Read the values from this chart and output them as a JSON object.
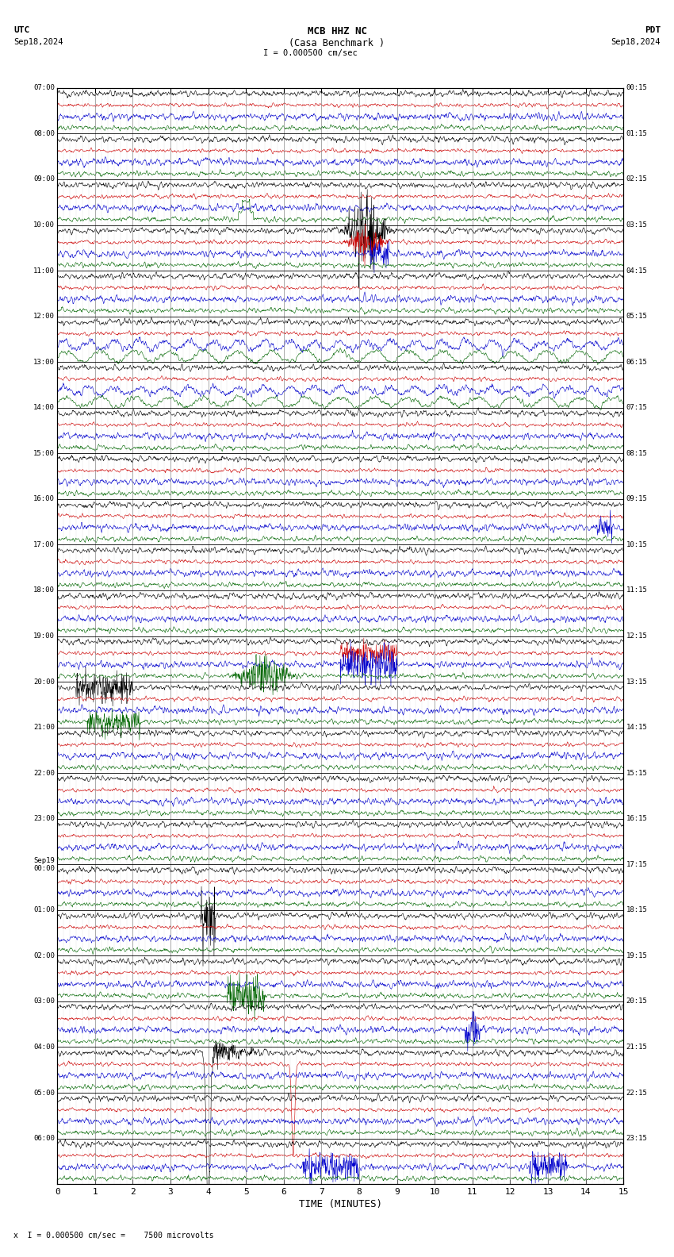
{
  "title_line1": "MCB HHZ NC",
  "title_line2": "(Casa Benchmark )",
  "title_scale": "I = 0.000500 cm/sec",
  "utc_label": "UTC",
  "pdt_label": "PDT",
  "utc_date": "Sep18,2024",
  "pdt_date": "Sep18,2024",
  "bottom_label": "x  I = 0.000500 cm/sec =    7500 microvolts",
  "xlabel": "TIME (MINUTES)",
  "bg_color": "#ffffff",
  "trace_colors": [
    "#000000",
    "#cc0000",
    "#0000cc",
    "#006600"
  ],
  "n_rows": 24,
  "left_labels": [
    "07:00",
    "08:00",
    "09:00",
    "10:00",
    "11:00",
    "12:00",
    "13:00",
    "14:00",
    "15:00",
    "16:00",
    "17:00",
    "18:00",
    "19:00",
    "20:00",
    "21:00",
    "22:00",
    "23:00",
    "Sep19\n00:00",
    "01:00",
    "02:00",
    "03:00",
    "04:00",
    "05:00",
    "06:00"
  ],
  "right_labels": [
    "00:15",
    "01:15",
    "02:15",
    "03:15",
    "04:15",
    "05:15",
    "06:15",
    "07:15",
    "08:15",
    "09:15",
    "10:15",
    "11:15",
    "12:15",
    "13:15",
    "14:15",
    "15:15",
    "16:15",
    "17:15",
    "18:15",
    "19:15",
    "20:15",
    "21:15",
    "22:15",
    "23:15"
  ],
  "noise_seed": 12345
}
